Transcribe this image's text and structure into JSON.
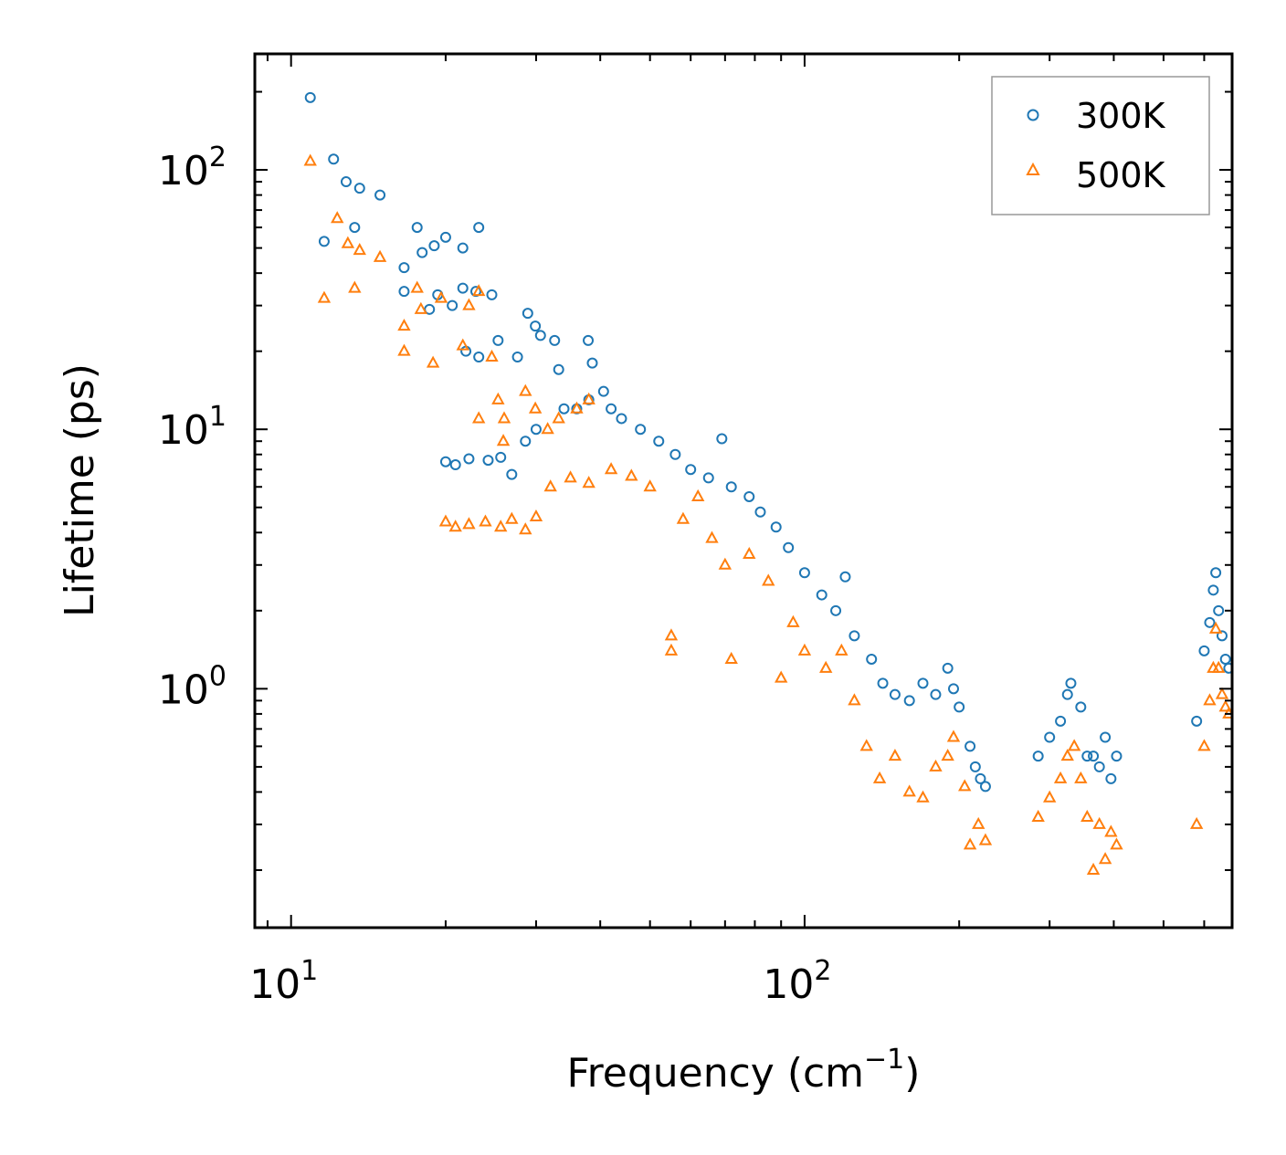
{
  "chart_data": {
    "type": "scatter",
    "xscale": "log",
    "yscale": "log",
    "xlim": [
      8.5,
      680
    ],
    "ylim": [
      0.12,
      280
    ],
    "xlabel": {
      "text": "Frequency (cm",
      "sup": "−1",
      "suffix": ")"
    },
    "ylabel": "Lifetime (ps)",
    "xticks": [
      {
        "base": "10",
        "exp": "1",
        "value": 10
      },
      {
        "base": "10",
        "exp": "2",
        "value": 100
      }
    ],
    "yticks": [
      {
        "base": "10",
        "exp": "0",
        "value": 1
      },
      {
        "base": "10",
        "exp": "1",
        "value": 10
      },
      {
        "base": "10",
        "exp": "2",
        "value": 100
      }
    ],
    "legend_position": "upper-right",
    "series": [
      {
        "name": "300K",
        "marker": "circle",
        "color": "#1f77b4",
        "points": [
          [
            10.9,
            190
          ],
          [
            12.1,
            110
          ],
          [
            11.6,
            53
          ],
          [
            12.8,
            90
          ],
          [
            13.6,
            85
          ],
          [
            14.9,
            80
          ],
          [
            13.3,
            60
          ],
          [
            17.6,
            60
          ],
          [
            16.6,
            42
          ],
          [
            16.6,
            34
          ],
          [
            18.0,
            48
          ],
          [
            19.0,
            51
          ],
          [
            20.0,
            55
          ],
          [
            21.6,
            50
          ],
          [
            23.2,
            60
          ],
          [
            21.6,
            35
          ],
          [
            22.9,
            34
          ],
          [
            24.6,
            33
          ],
          [
            20.6,
            30
          ],
          [
            19.3,
            33
          ],
          [
            18.6,
            29
          ],
          [
            28.9,
            28
          ],
          [
            29.9,
            25
          ],
          [
            30.6,
            23
          ],
          [
            32.6,
            22
          ],
          [
            37.9,
            22
          ],
          [
            38.6,
            18
          ],
          [
            33.2,
            17
          ],
          [
            27.6,
            19
          ],
          [
            25.3,
            22
          ],
          [
            21.9,
            20
          ],
          [
            23.2,
            19
          ],
          [
            20.0,
            7.5
          ],
          [
            20.9,
            7.3
          ],
          [
            22.2,
            7.7
          ],
          [
            24.2,
            7.6
          ],
          [
            25.6,
            7.8
          ],
          [
            26.9,
            6.7
          ],
          [
            28.6,
            9
          ],
          [
            30.0,
            10
          ],
          [
            34.0,
            12
          ],
          [
            36.0,
            12
          ],
          [
            38.0,
            13
          ],
          [
            40.6,
            14
          ],
          [
            42.0,
            12
          ],
          [
            44.0,
            11
          ],
          [
            47.9,
            10
          ],
          [
            52.0,
            9
          ],
          [
            56.0,
            8
          ],
          [
            60.0,
            7
          ],
          [
            65.0,
            6.5
          ],
          [
            69.0,
            9.2
          ],
          [
            72.0,
            6
          ],
          [
            78.0,
            5.5
          ],
          [
            82.0,
            4.8
          ],
          [
            88.0,
            4.2
          ],
          [
            93.0,
            3.5
          ],
          [
            100,
            2.8
          ],
          [
            108,
            2.3
          ],
          [
            115,
            2.0
          ],
          [
            120,
            2.7
          ],
          [
            125,
            1.6
          ],
          [
            135,
            1.3
          ],
          [
            142,
            1.05
          ],
          [
            150,
            0.95
          ],
          [
            160,
            0.9
          ],
          [
            170,
            1.05
          ],
          [
            180,
            0.95
          ],
          [
            190,
            1.2
          ],
          [
            195,
            1.0
          ],
          [
            200,
            0.85
          ],
          [
            210,
            0.6
          ],
          [
            215,
            0.5
          ],
          [
            220,
            0.45
          ],
          [
            225,
            0.42
          ],
          [
            285,
            0.55
          ],
          [
            300,
            0.65
          ],
          [
            315,
            0.75
          ],
          [
            325,
            0.95
          ],
          [
            330,
            1.05
          ],
          [
            345,
            0.85
          ],
          [
            355,
            0.55
          ],
          [
            365,
            0.55
          ],
          [
            375,
            0.5
          ],
          [
            385,
            0.65
          ],
          [
            395,
            0.45
          ],
          [
            405,
            0.55
          ],
          [
            580,
            0.75
          ],
          [
            600,
            1.4
          ],
          [
            615,
            1.8
          ],
          [
            625,
            2.4
          ],
          [
            632,
            2.8
          ],
          [
            640,
            2.0
          ],
          [
            650,
            1.6
          ],
          [
            660,
            1.3
          ],
          [
            670,
            1.2
          ]
        ]
      },
      {
        "name": "500K",
        "marker": "triangle",
        "color": "#ff7f0e",
        "points": [
          [
            10.9,
            108
          ],
          [
            12.3,
            65
          ],
          [
            12.9,
            52
          ],
          [
            13.6,
            49
          ],
          [
            14.9,
            46
          ],
          [
            11.6,
            32
          ],
          [
            13.3,
            35
          ],
          [
            17.6,
            35
          ],
          [
            16.6,
            25
          ],
          [
            16.6,
            20
          ],
          [
            17.9,
            29
          ],
          [
            18.9,
            18
          ],
          [
            19.6,
            32
          ],
          [
            21.6,
            21
          ],
          [
            22.2,
            30
          ],
          [
            23.2,
            34
          ],
          [
            24.6,
            19
          ],
          [
            25.3,
            13
          ],
          [
            26.0,
            11
          ],
          [
            23.2,
            11
          ],
          [
            25.9,
            9
          ],
          [
            28.6,
            14
          ],
          [
            29.9,
            12
          ],
          [
            31.6,
            10
          ],
          [
            33.2,
            11
          ],
          [
            36.0,
            12
          ],
          [
            38.0,
            13
          ],
          [
            20.0,
            4.4
          ],
          [
            20.9,
            4.2
          ],
          [
            22.2,
            4.3
          ],
          [
            23.9,
            4.4
          ],
          [
            25.6,
            4.2
          ],
          [
            26.9,
            4.5
          ],
          [
            28.6,
            4.1
          ],
          [
            30.0,
            4.6
          ],
          [
            32.0,
            6
          ],
          [
            35.0,
            6.5
          ],
          [
            38.0,
            6.2
          ],
          [
            42.0,
            7
          ],
          [
            46.0,
            6.6
          ],
          [
            50.0,
            6
          ],
          [
            55.0,
            1.6
          ],
          [
            55.0,
            1.4
          ],
          [
            58.0,
            4.5
          ],
          [
            62.0,
            5.5
          ],
          [
            66.0,
            3.8
          ],
          [
            70.0,
            3.0
          ],
          [
            72.0,
            1.3
          ],
          [
            78.0,
            3.3
          ],
          [
            85.0,
            2.6
          ],
          [
            90.0,
            1.1
          ],
          [
            95.0,
            1.8
          ],
          [
            100,
            1.4
          ],
          [
            110,
            1.2
          ],
          [
            118,
            1.4
          ],
          [
            125,
            0.9
          ],
          [
            132,
            0.6
          ],
          [
            140,
            0.45
          ],
          [
            150,
            0.55
          ],
          [
            160,
            0.4
          ],
          [
            170,
            0.38
          ],
          [
            180,
            0.5
          ],
          [
            190,
            0.55
          ],
          [
            195,
            0.65
          ],
          [
            205,
            0.42
          ],
          [
            210,
            0.25
          ],
          [
            218,
            0.3
          ],
          [
            225,
            0.26
          ],
          [
            285,
            0.32
          ],
          [
            300,
            0.38
          ],
          [
            315,
            0.45
          ],
          [
            325,
            0.55
          ],
          [
            335,
            0.6
          ],
          [
            345,
            0.45
          ],
          [
            355,
            0.32
          ],
          [
            365,
            0.2
          ],
          [
            375,
            0.3
          ],
          [
            385,
            0.22
          ],
          [
            395,
            0.28
          ],
          [
            405,
            0.25
          ],
          [
            580,
            0.3
          ],
          [
            600,
            0.6
          ],
          [
            615,
            0.9
          ],
          [
            625,
            1.2
          ],
          [
            632,
            1.7
          ],
          [
            640,
            1.2
          ],
          [
            650,
            0.95
          ],
          [
            660,
            0.85
          ],
          [
            670,
            0.8
          ]
        ]
      }
    ]
  }
}
